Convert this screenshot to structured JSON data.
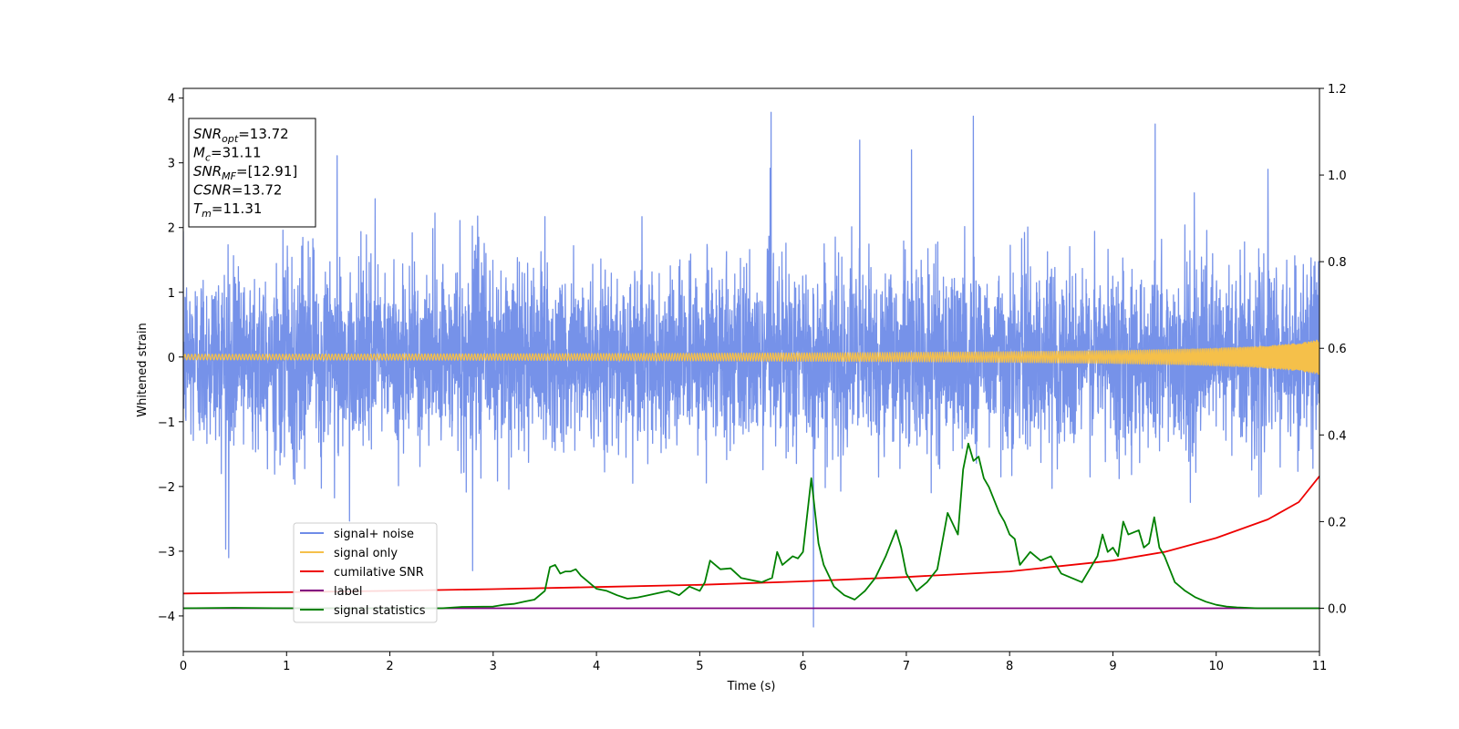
{
  "chart_data": {
    "type": "line",
    "xlabel": "Time (s)",
    "ylabel": "Whitened strain",
    "xlim": [
      0,
      11
    ],
    "ylim_left": [
      -4.55,
      4.15
    ],
    "ylim_right": [
      -0.1,
      1.2
    ],
    "x_ticks": [
      0,
      1,
      2,
      3,
      4,
      5,
      6,
      7,
      8,
      9,
      10,
      11
    ],
    "y_ticks_left": [
      -4,
      -3,
      -2,
      -1,
      0,
      1,
      2,
      3,
      4
    ],
    "y_ticks_right": [
      0.0,
      0.2,
      0.4,
      0.6,
      0.8,
      1.0,
      1.2
    ],
    "y_tick_labels_left": [
      "−4",
      "−3",
      "−2",
      "−1",
      "0",
      "1",
      "2",
      "3",
      "4"
    ],
    "y_tick_labels_right": [
      "0.0",
      "0.2",
      "0.4",
      "0.6",
      "0.8",
      "1.0",
      "1.2"
    ],
    "grid": false,
    "legend_position": "lower-left",
    "series": [
      {
        "name": "signal+ noise",
        "color": "#6f8ce8",
        "axis": "left",
        "kind": "noise",
        "std": 0.7,
        "peaks": [
          {
            "x": 5.69,
            "y": 3.78
          },
          {
            "x": 7.65,
            "y": 3.72
          },
          {
            "x": 9.41,
            "y": 3.6
          },
          {
            "x": 1.49,
            "y": 3.11
          },
          {
            "x": 6.1,
            "y": -4.17
          },
          {
            "x": 0.44,
            "y": -3.1
          },
          {
            "x": 2.8,
            "y": -3.3
          },
          {
            "x": 7.05,
            "y": 3.2
          },
          {
            "x": 6.55,
            "y": 3.35
          },
          {
            "x": 10.5,
            "y": 2.9
          }
        ]
      },
      {
        "name": "signal only",
        "color": "#f5c04a",
        "axis": "left",
        "kind": "chirp",
        "amplitude_end": 0.27
      },
      {
        "name": "cumilative SNR",
        "color": "#ee0000",
        "axis": "right",
        "x": [
          0,
          1,
          2,
          3,
          4,
          5,
          6,
          7,
          8,
          9,
          9.5,
          10,
          10.5,
          10.8,
          11
        ],
        "values": [
          0.034,
          0.037,
          0.04,
          0.044,
          0.049,
          0.054,
          0.062,
          0.072,
          0.085,
          0.11,
          0.13,
          0.162,
          0.205,
          0.245,
          0.305
        ]
      },
      {
        "name": "label",
        "color": "#800080",
        "axis": "right",
        "x": [
          0,
          11
        ],
        "values": [
          0.0,
          0.0
        ]
      },
      {
        "name": "signal statistics",
        "color": "#008000",
        "axis": "right",
        "x": [
          0,
          0.5,
          1,
          1.5,
          2,
          2.5,
          2.7,
          3.0,
          3.1,
          3.2,
          3.3,
          3.4,
          3.5,
          3.55,
          3.6,
          3.65,
          3.7,
          3.75,
          3.8,
          3.85,
          3.9,
          3.95,
          4.0,
          4.1,
          4.2,
          4.3,
          4.4,
          4.5,
          4.6,
          4.7,
          4.8,
          4.9,
          5.0,
          5.05,
          5.1,
          5.2,
          5.3,
          5.4,
          5.5,
          5.6,
          5.7,
          5.75,
          5.8,
          5.9,
          5.95,
          6.0,
          6.08,
          6.15,
          6.2,
          6.3,
          6.4,
          6.5,
          6.6,
          6.7,
          6.8,
          6.9,
          6.95,
          7.0,
          7.1,
          7.2,
          7.3,
          7.4,
          7.5,
          7.55,
          7.6,
          7.65,
          7.7,
          7.75,
          7.8,
          7.9,
          7.95,
          8.0,
          8.05,
          8.1,
          8.2,
          8.3,
          8.4,
          8.5,
          8.6,
          8.7,
          8.8,
          8.85,
          8.9,
          8.95,
          9.0,
          9.05,
          9.1,
          9.15,
          9.25,
          9.3,
          9.35,
          9.4,
          9.45,
          9.5,
          9.6,
          9.7,
          9.8,
          9.9,
          10.0,
          10.1,
          10.2,
          10.4,
          10.6,
          11.0
        ],
        "values": [
          0.0,
          0.001,
          0.0,
          0.0,
          0.0,
          0.0,
          0.003,
          0.004,
          0.008,
          0.01,
          0.015,
          0.02,
          0.04,
          0.095,
          0.1,
          0.08,
          0.085,
          0.085,
          0.09,
          0.075,
          0.065,
          0.055,
          0.045,
          0.04,
          0.03,
          0.022,
          0.025,
          0.03,
          0.035,
          0.04,
          0.03,
          0.05,
          0.04,
          0.06,
          0.11,
          0.09,
          0.092,
          0.07,
          0.065,
          0.06,
          0.07,
          0.13,
          0.1,
          0.12,
          0.115,
          0.13,
          0.3,
          0.15,
          0.1,
          0.05,
          0.03,
          0.02,
          0.04,
          0.07,
          0.12,
          0.18,
          0.14,
          0.08,
          0.04,
          0.06,
          0.09,
          0.22,
          0.17,
          0.32,
          0.38,
          0.34,
          0.35,
          0.3,
          0.28,
          0.22,
          0.2,
          0.17,
          0.16,
          0.1,
          0.13,
          0.11,
          0.12,
          0.08,
          0.07,
          0.06,
          0.1,
          0.12,
          0.17,
          0.13,
          0.14,
          0.12,
          0.2,
          0.17,
          0.18,
          0.14,
          0.15,
          0.21,
          0.14,
          0.12,
          0.06,
          0.04,
          0.025,
          0.015,
          0.008,
          0.004,
          0.002,
          0.0,
          0.0,
          0.0
        ]
      }
    ],
    "annotation": {
      "lines": [
        {
          "base": "SNR",
          "sub": "opt",
          "value": "=13.72"
        },
        {
          "base": "M",
          "sub": "c",
          "value": "=31.11"
        },
        {
          "base": "SNR",
          "sub": "MF",
          "value": "=[12.91]"
        },
        {
          "base": "CSNR",
          "sub": "",
          "value": "=13.72"
        },
        {
          "base": "T",
          "sub": "m",
          "value": "=11.31"
        }
      ]
    }
  }
}
